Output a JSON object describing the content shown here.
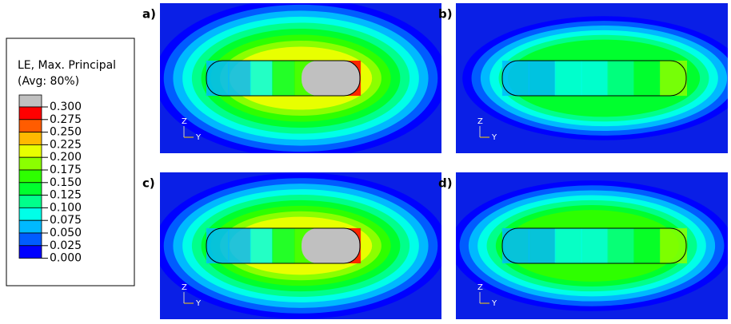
{
  "legend": {
    "title": [
      "LE, Max. Principal",
      "(Avg: 80%)"
    ],
    "labels": [
      "0.300",
      "0.275",
      "0.250",
      "0.225",
      "0.200",
      "0.175",
      "0.150",
      "0.125",
      "0.100",
      "0.075",
      "0.050",
      "0.025",
      "0.000"
    ]
  },
  "panels": [
    {
      "label": "a)",
      "axis_z": "Z",
      "axis_y": "Y"
    },
    {
      "label": "b)",
      "axis_z": "Z",
      "axis_y": "Y"
    },
    {
      "label": "c)",
      "axis_z": "Z",
      "axis_y": "Y"
    },
    {
      "label": "d)",
      "axis_z": "Z",
      "axis_y": "Y"
    }
  ]
}
